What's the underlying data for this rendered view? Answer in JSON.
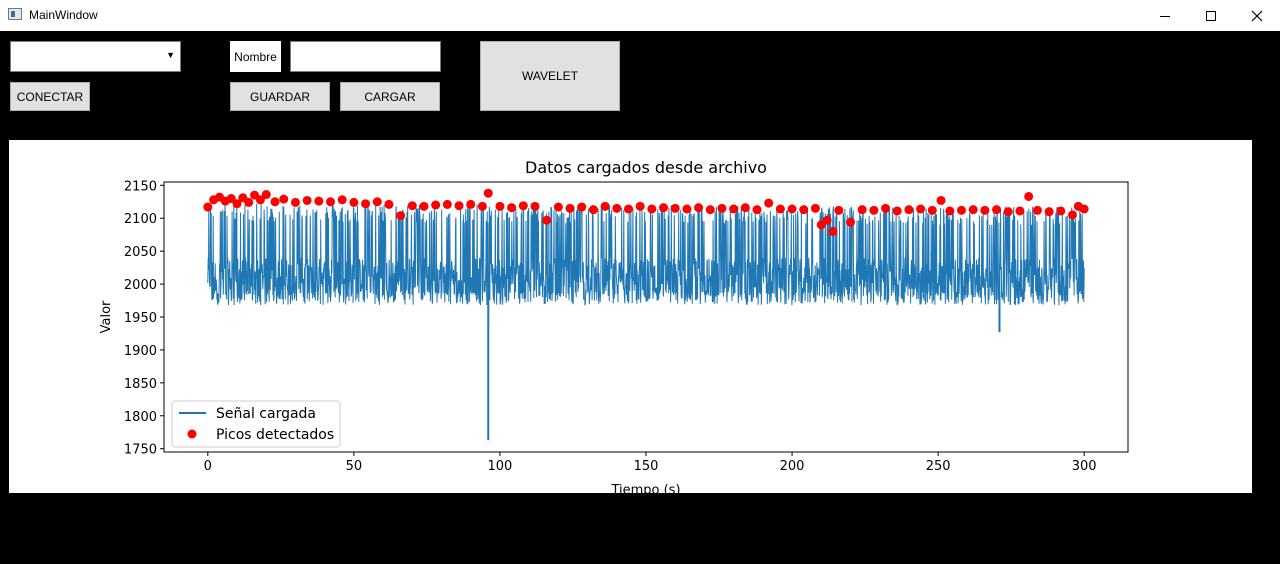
{
  "window": {
    "title": "MainWindow",
    "minimize_icon": "minimize-icon",
    "maximize_icon": "maximize-icon",
    "close_icon": "close-icon"
  },
  "controls": {
    "combo_value": "",
    "connect_label": "CONECTAR",
    "name_label": "Nombre",
    "name_value": "",
    "save_label": "GUARDAR",
    "load_label": "CARGAR",
    "wavelet_label": "WAVELET"
  },
  "chart_data": {
    "type": "line",
    "title": "Datos cargados desde archivo",
    "xlabel": "Tiempo (s)",
    "ylabel": "Valor",
    "xlim": [
      -15,
      315
    ],
    "ylim": [
      1745,
      2155
    ],
    "x_ticks": [
      0,
      50,
      100,
      150,
      200,
      250,
      300
    ],
    "y_ticks": [
      1750,
      1800,
      1850,
      1900,
      1950,
      2000,
      2050,
      2100,
      2150
    ],
    "legend": {
      "position": "lower-left",
      "entries": [
        "Señal cargada",
        "Picos detectados"
      ]
    },
    "series": [
      {
        "name": "Señal cargada",
        "kind": "line",
        "color": "#1f77b4",
        "x_range": [
          0,
          300
        ],
        "approx_range": [
          1960,
          2125
        ],
        "min_point": {
          "x": 96,
          "y": 1763
        },
        "secondary_dip": {
          "x": 271,
          "y": 1927
        }
      },
      {
        "name": "Picos detectados",
        "kind": "scatter",
        "color": "#ff0000",
        "x": [
          0,
          2,
          4,
          6,
          8,
          10,
          12,
          14,
          16,
          18,
          20,
          23,
          26,
          30,
          34,
          38,
          42,
          46,
          50,
          54,
          58,
          62,
          66,
          70,
          74,
          78,
          82,
          86,
          90,
          94,
          96,
          100,
          104,
          108,
          112,
          116,
          120,
          124,
          128,
          132,
          136,
          140,
          144,
          148,
          152,
          156,
          160,
          164,
          168,
          172,
          176,
          180,
          184,
          188,
          192,
          196,
          200,
          204,
          208,
          210,
          212,
          214,
          216,
          220,
          224,
          228,
          232,
          236,
          240,
          244,
          248,
          251,
          254,
          258,
          262,
          266,
          270,
          274,
          278,
          281,
          284,
          288,
          292,
          296,
          298,
          300
        ],
        "y": [
          2117,
          2128,
          2132,
          2126,
          2130,
          2122,
          2131,
          2124,
          2135,
          2128,
          2136,
          2125,
          2129,
          2124,
          2127,
          2126,
          2125,
          2128,
          2124,
          2122,
          2125,
          2121,
          2104,
          2119,
          2118,
          2120,
          2121,
          2119,
          2121,
          2118,
          2138,
          2118,
          2116,
          2119,
          2118,
          2097,
          2117,
          2115,
          2117,
          2113,
          2118,
          2115,
          2114,
          2118,
          2114,
          2116,
          2115,
          2114,
          2116,
          2113,
          2115,
          2114,
          2116,
          2113,
          2123,
          2114,
          2114,
          2113,
          2115,
          2090,
          2097,
          2080,
          2112,
          2094,
          2113,
          2112,
          2115,
          2111,
          2113,
          2114,
          2112,
          2127,
          2111,
          2112,
          2113,
          2112,
          2113,
          2110,
          2111,
          2133,
          2112,
          2110,
          2111,
          2105,
          2118,
          2114
        ]
      }
    ]
  }
}
